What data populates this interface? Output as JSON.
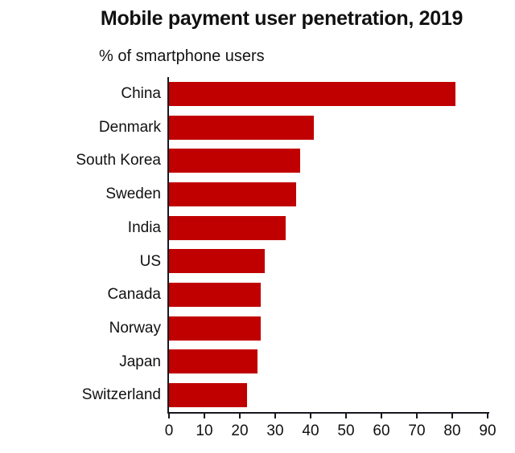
{
  "title": "Mobile payment user penetration, 2019",
  "subtitle": "% of smartphone users",
  "colors": {
    "bar": "#c00000",
    "axis": "#17171f",
    "text": "#111111",
    "background": "#ffffff"
  },
  "chart_data": {
    "type": "bar",
    "orientation": "horizontal",
    "title": "Mobile payment user penetration, 2019",
    "subtitle": "% of smartphone users",
    "value_unit": "% of smartphone users",
    "categories": [
      "China",
      "Denmark",
      "South Korea",
      "Sweden",
      "India",
      "US",
      "Canada",
      "Norway",
      "Japan",
      "Switzerland"
    ],
    "values": [
      81,
      41,
      37,
      36,
      33,
      27,
      26,
      26,
      25,
      22
    ],
    "xlim": [
      0,
      90
    ],
    "xticks": [
      0,
      10,
      20,
      30,
      40,
      50,
      60,
      70,
      80,
      90
    ],
    "grid": false,
    "legend": false,
    "data_labels": false,
    "sorted": "descending"
  }
}
